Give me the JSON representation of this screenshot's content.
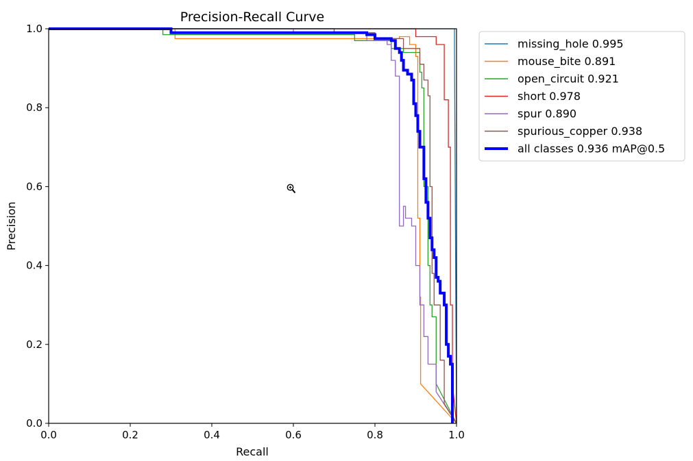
{
  "chart_data": {
    "type": "line",
    "title": "Precision-Recall Curve",
    "xlabel": "Recall",
    "ylabel": "Precision",
    "xlim": [
      0.0,
      1.0
    ],
    "ylim": [
      0.0,
      1.0
    ],
    "xticks": [
      0.0,
      0.2,
      0.4,
      0.6,
      0.8,
      1.0
    ],
    "yticks": [
      0.0,
      0.2,
      0.4,
      0.6,
      0.8,
      1.0
    ],
    "tick_format_decimals": 1,
    "grid": false,
    "legend_position": "outside-right-top",
    "series": [
      {
        "name": "missing_hole",
        "label": "missing_hole 0.995",
        "ap": 0.995,
        "color": "#1f77b4",
        "line_weight": "thin",
        "points": [
          [
            0.0,
            1.0
          ],
          [
            0.995,
            1.0
          ],
          [
            0.995,
            0.95
          ],
          [
            1.0,
            0.0
          ]
        ]
      },
      {
        "name": "mouse_bite",
        "label": "mouse_bite 0.891",
        "ap": 0.891,
        "color": "#ff7f0e",
        "line_weight": "thin",
        "points": [
          [
            0.0,
            1.0
          ],
          [
            0.31,
            1.0
          ],
          [
            0.31,
            0.975
          ],
          [
            0.86,
            0.975
          ],
          [
            0.86,
            0.98
          ],
          [
            0.885,
            0.98
          ],
          [
            0.885,
            0.96
          ],
          [
            0.9,
            0.96
          ],
          [
            0.9,
            0.93
          ],
          [
            0.905,
            0.93
          ],
          [
            0.905,
            0.52
          ],
          [
            0.91,
            0.52
          ],
          [
            0.91,
            0.32
          ],
          [
            0.912,
            0.32
          ],
          [
            0.912,
            0.1
          ],
          [
            1.0,
            0.0
          ]
        ]
      },
      {
        "name": "open_circuit",
        "label": "open_circuit 0.921",
        "ap": 0.921,
        "color": "#2ca02c",
        "line_weight": "thin",
        "points": [
          [
            0.0,
            1.0
          ],
          [
            0.28,
            1.0
          ],
          [
            0.28,
            0.985
          ],
          [
            0.75,
            0.985
          ],
          [
            0.75,
            0.97
          ],
          [
            0.84,
            0.97
          ],
          [
            0.84,
            0.95
          ],
          [
            0.87,
            0.95
          ],
          [
            0.87,
            0.94
          ],
          [
            0.91,
            0.94
          ],
          [
            0.91,
            0.89
          ],
          [
            0.915,
            0.89
          ],
          [
            0.915,
            0.85
          ],
          [
            0.92,
            0.85
          ],
          [
            0.92,
            0.6
          ],
          [
            0.93,
            0.6
          ],
          [
            0.93,
            0.4
          ],
          [
            0.935,
            0.4
          ],
          [
            0.935,
            0.3
          ],
          [
            0.94,
            0.3
          ],
          [
            0.94,
            0.27
          ],
          [
            0.95,
            0.27
          ],
          [
            0.95,
            0.1
          ],
          [
            1.0,
            0.0
          ]
        ]
      },
      {
        "name": "short",
        "label": "short 0.978",
        "ap": 0.978,
        "color": "#d62728",
        "line_weight": "thin",
        "points": [
          [
            0.0,
            1.0
          ],
          [
            0.9,
            1.0
          ],
          [
            0.9,
            0.98
          ],
          [
            0.95,
            0.98
          ],
          [
            0.95,
            0.96
          ],
          [
            0.97,
            0.96
          ],
          [
            0.97,
            0.82
          ],
          [
            0.98,
            0.82
          ],
          [
            0.98,
            0.7
          ],
          [
            0.985,
            0.7
          ],
          [
            0.985,
            0.3
          ],
          [
            0.99,
            0.3
          ],
          [
            0.99,
            0.1
          ],
          [
            1.0,
            0.0
          ]
        ]
      },
      {
        "name": "spur",
        "label": "spur 0.890",
        "ap": 0.89,
        "color": "#9467bd",
        "line_weight": "thin",
        "points": [
          [
            0.0,
            1.0
          ],
          [
            0.6,
            1.0
          ],
          [
            0.6,
            0.99
          ],
          [
            0.78,
            0.99
          ],
          [
            0.78,
            0.97
          ],
          [
            0.83,
            0.97
          ],
          [
            0.83,
            0.96
          ],
          [
            0.84,
            0.96
          ],
          [
            0.84,
            0.92
          ],
          [
            0.85,
            0.92
          ],
          [
            0.85,
            0.88
          ],
          [
            0.86,
            0.88
          ],
          [
            0.86,
            0.5
          ],
          [
            0.87,
            0.5
          ],
          [
            0.87,
            0.55
          ],
          [
            0.875,
            0.55
          ],
          [
            0.875,
            0.52
          ],
          [
            0.89,
            0.52
          ],
          [
            0.89,
            0.5
          ],
          [
            0.9,
            0.5
          ],
          [
            0.9,
            0.4
          ],
          [
            0.91,
            0.4
          ],
          [
            0.91,
            0.3
          ],
          [
            0.92,
            0.3
          ],
          [
            0.92,
            0.22
          ],
          [
            0.93,
            0.22
          ],
          [
            0.93,
            0.15
          ],
          [
            0.95,
            0.15
          ],
          [
            0.95,
            0.08
          ],
          [
            1.0,
            0.0
          ]
        ]
      },
      {
        "name": "spurious_copper",
        "label": "spurious_copper 0.938",
        "ap": 0.938,
        "color": "#8c564b",
        "line_weight": "thin",
        "points": [
          [
            0.0,
            1.0
          ],
          [
            0.7,
            1.0
          ],
          [
            0.7,
            0.99
          ],
          [
            0.8,
            0.99
          ],
          [
            0.8,
            0.975
          ],
          [
            0.87,
            0.975
          ],
          [
            0.87,
            0.95
          ],
          [
            0.91,
            0.95
          ],
          [
            0.91,
            0.91
          ],
          [
            0.92,
            0.91
          ],
          [
            0.92,
            0.87
          ],
          [
            0.93,
            0.87
          ],
          [
            0.93,
            0.83
          ],
          [
            0.935,
            0.83
          ],
          [
            0.935,
            0.6
          ],
          [
            0.94,
            0.6
          ],
          [
            0.94,
            0.38
          ],
          [
            0.945,
            0.38
          ],
          [
            0.945,
            0.3
          ],
          [
            0.96,
            0.3
          ],
          [
            0.96,
            0.16
          ],
          [
            0.97,
            0.16
          ],
          [
            0.97,
            0.05
          ],
          [
            1.0,
            0.0
          ]
        ]
      },
      {
        "name": "all_classes",
        "label": "all classes 0.936 mAP@0.5",
        "ap": 0.936,
        "color": "#0000ff",
        "line_weight": "thick",
        "points": [
          [
            0.0,
            1.0
          ],
          [
            0.3,
            1.0
          ],
          [
            0.3,
            0.99
          ],
          [
            0.78,
            0.99
          ],
          [
            0.78,
            0.985
          ],
          [
            0.8,
            0.985
          ],
          [
            0.8,
            0.975
          ],
          [
            0.84,
            0.975
          ],
          [
            0.84,
            0.97
          ],
          [
            0.85,
            0.97
          ],
          [
            0.85,
            0.95
          ],
          [
            0.86,
            0.95
          ],
          [
            0.86,
            0.94
          ],
          [
            0.865,
            0.94
          ],
          [
            0.865,
            0.92
          ],
          [
            0.87,
            0.92
          ],
          [
            0.87,
            0.895
          ],
          [
            0.88,
            0.895
          ],
          [
            0.88,
            0.885
          ],
          [
            0.89,
            0.885
          ],
          [
            0.89,
            0.87
          ],
          [
            0.895,
            0.87
          ],
          [
            0.895,
            0.81
          ],
          [
            0.9,
            0.81
          ],
          [
            0.9,
            0.78
          ],
          [
            0.905,
            0.78
          ],
          [
            0.905,
            0.74
          ],
          [
            0.91,
            0.74
          ],
          [
            0.91,
            0.7
          ],
          [
            0.92,
            0.7
          ],
          [
            0.92,
            0.62
          ],
          [
            0.925,
            0.62
          ],
          [
            0.925,
            0.56
          ],
          [
            0.93,
            0.56
          ],
          [
            0.93,
            0.52
          ],
          [
            0.935,
            0.52
          ],
          [
            0.935,
            0.47
          ],
          [
            0.94,
            0.47
          ],
          [
            0.94,
            0.44
          ],
          [
            0.945,
            0.44
          ],
          [
            0.945,
            0.42
          ],
          [
            0.95,
            0.42
          ],
          [
            0.95,
            0.37
          ],
          [
            0.955,
            0.37
          ],
          [
            0.955,
            0.36
          ],
          [
            0.96,
            0.36
          ],
          [
            0.96,
            0.33
          ],
          [
            0.97,
            0.33
          ],
          [
            0.97,
            0.3
          ],
          [
            0.975,
            0.3
          ],
          [
            0.975,
            0.2
          ],
          [
            0.98,
            0.2
          ],
          [
            0.98,
            0.17
          ],
          [
            0.985,
            0.17
          ],
          [
            0.985,
            0.15
          ],
          [
            0.99,
            0.15
          ],
          [
            0.99,
            0.0
          ]
        ]
      }
    ]
  }
}
